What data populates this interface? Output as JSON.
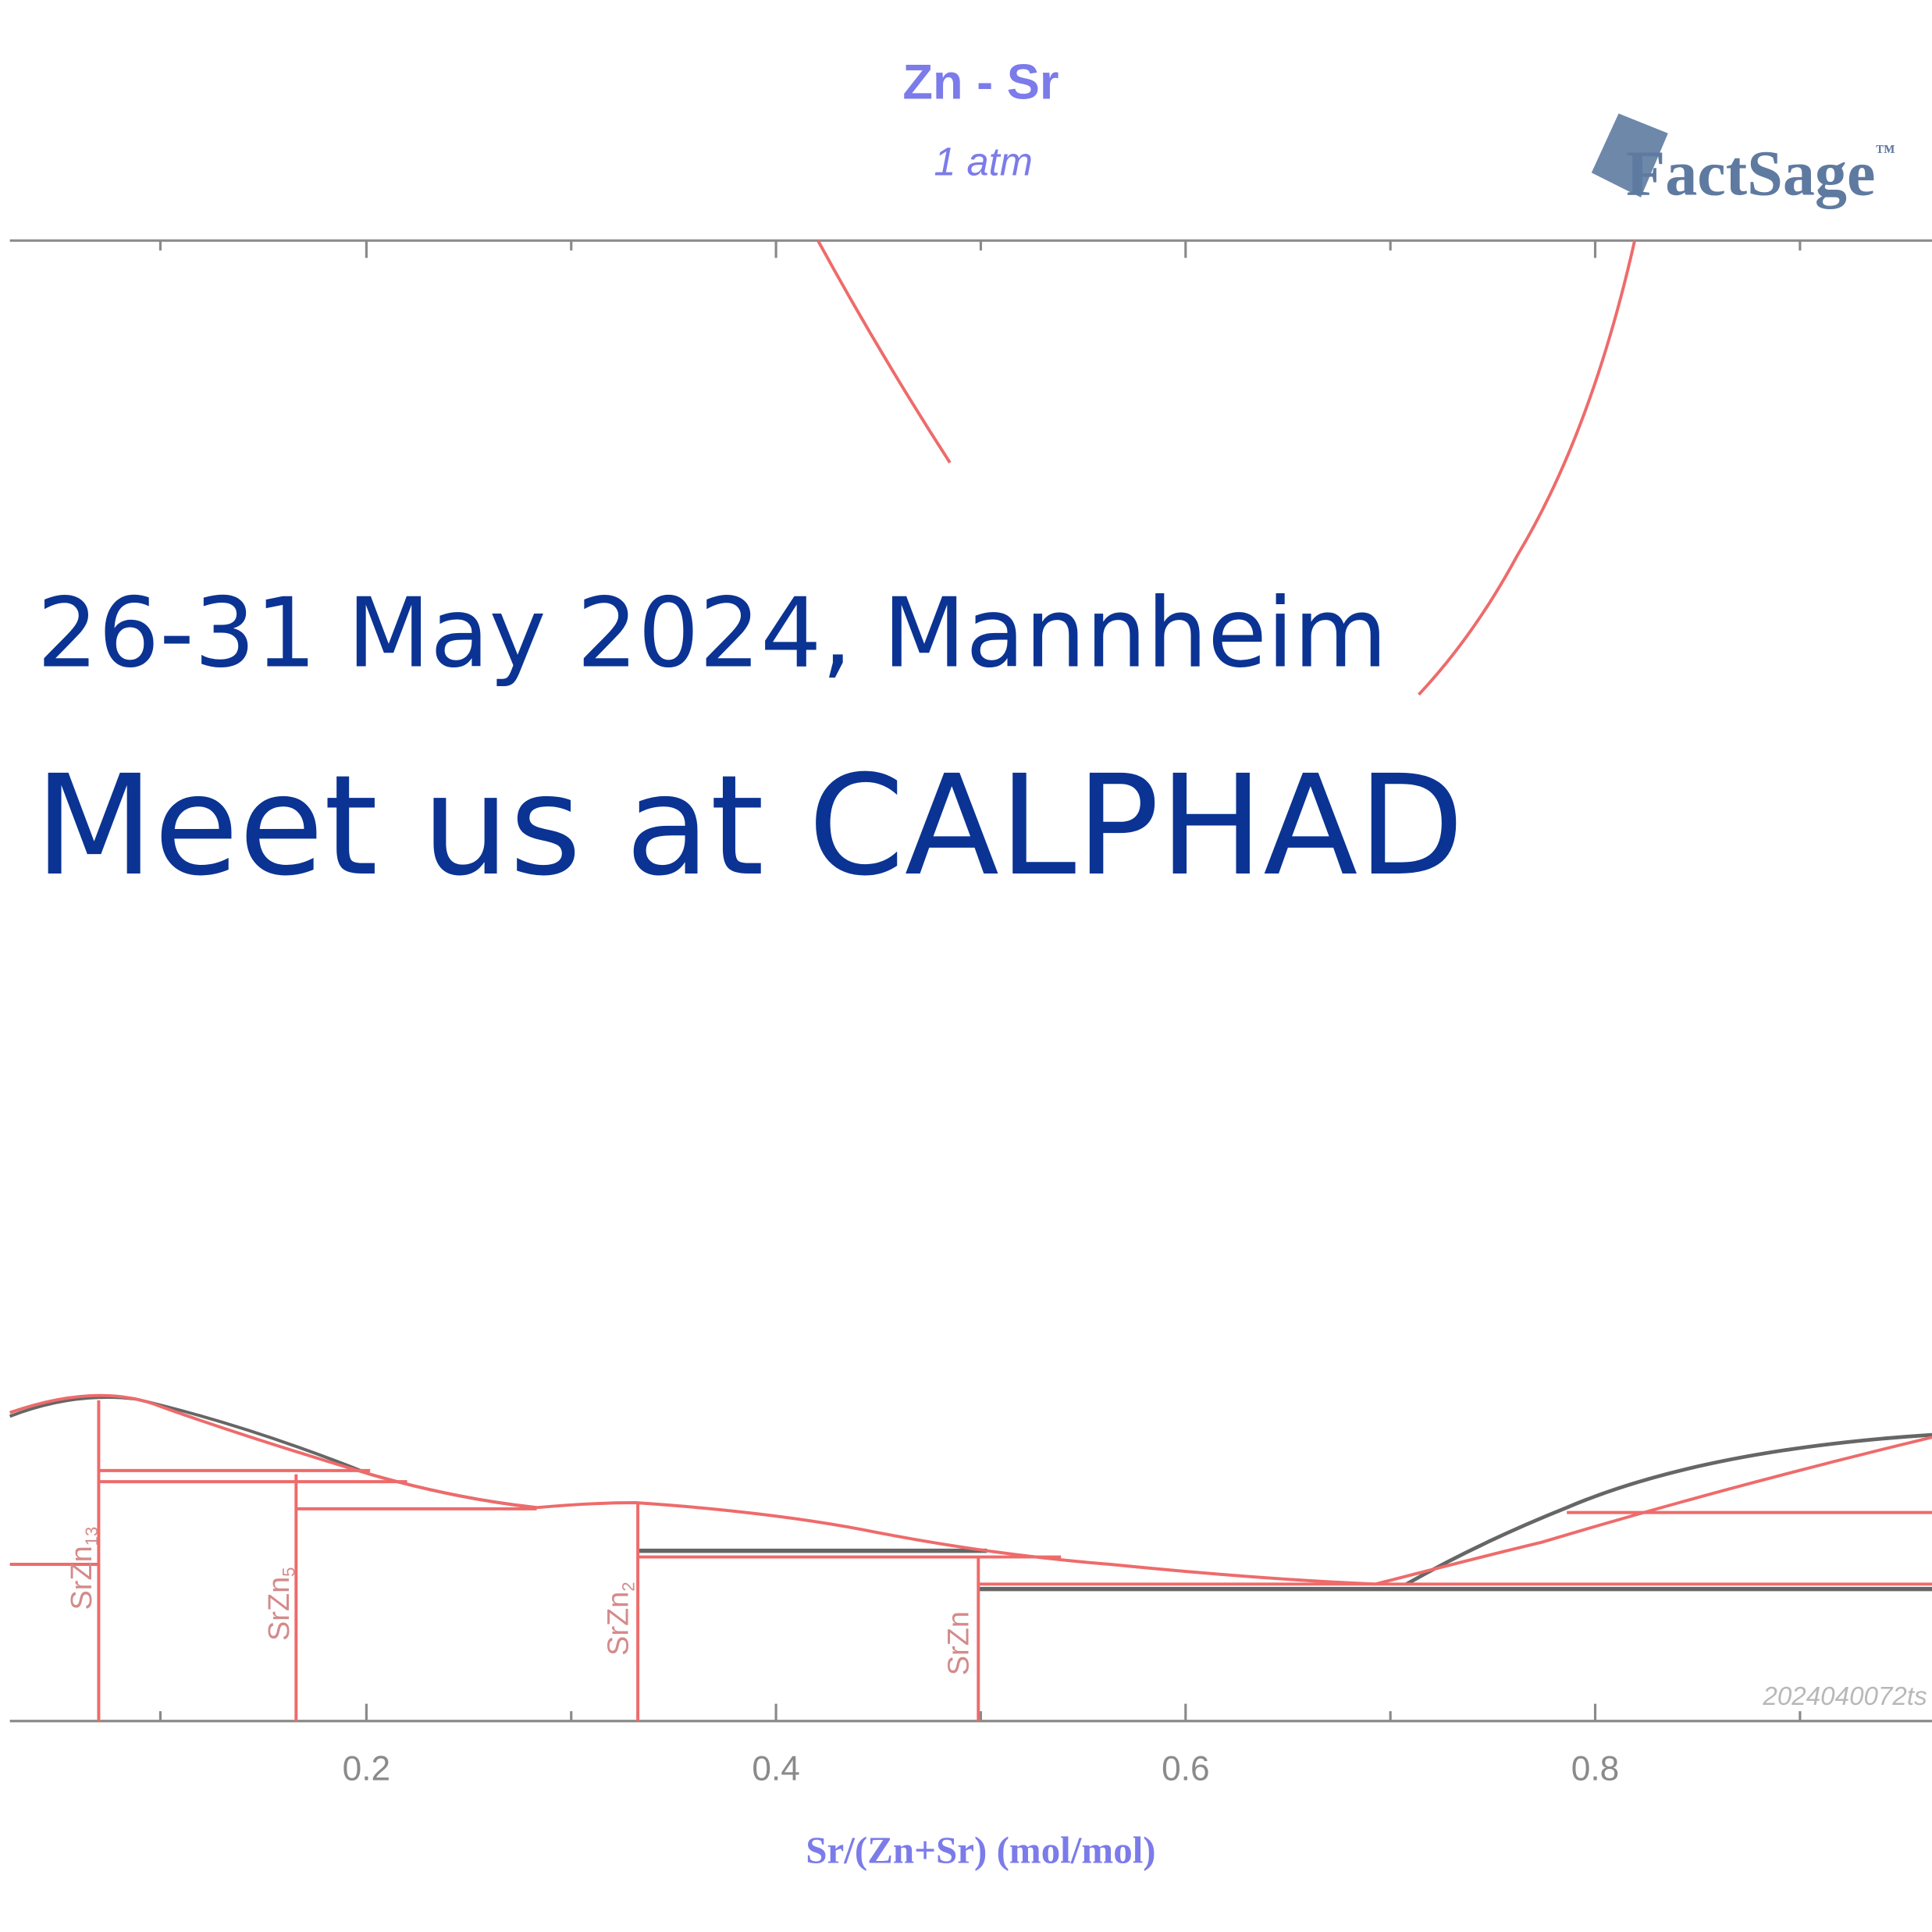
{
  "header": {
    "title": "Zn - Sr",
    "subtitle": "1 atm",
    "logo": "FactSage",
    "logo_mark": "™"
  },
  "event": {
    "dates": "26-31 May 2024, Mannheim",
    "headline": "Meet us at CALPHAD"
  },
  "diagram": {
    "phase_labels": [
      {
        "formula": "SrZn",
        "subscript": "13"
      },
      {
        "formula": "SrZn",
        "subscript": "5"
      },
      {
        "formula": "SrZn",
        "subscript": "2"
      },
      {
        "formula": "SrZn"
      }
    ],
    "x_tick_labels": [
      "0.2",
      "0.4",
      "0.6",
      "0.8"
    ],
    "x_axis_label": "Sr/(Zn+Sr) (mol/mol)",
    "stamp": "2024040072ts"
  }
}
